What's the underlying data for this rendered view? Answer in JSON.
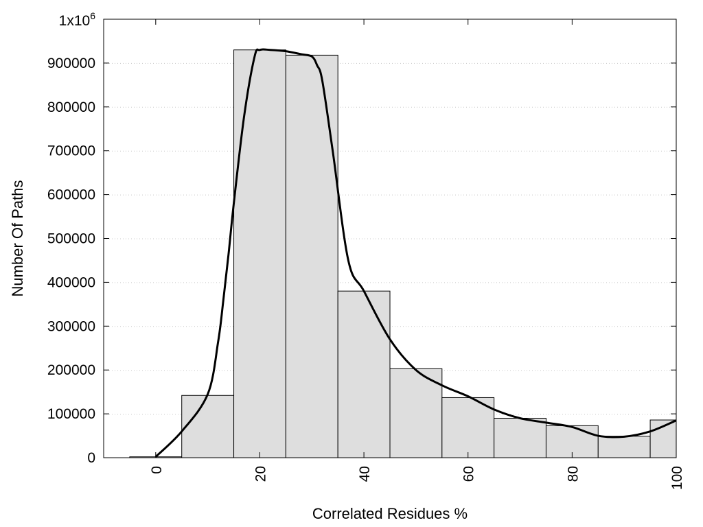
{
  "chart_data": {
    "type": "bar",
    "title": "",
    "xlabel": "Correlated Residues %",
    "ylabel": "Number Of Paths",
    "xlim": [
      -10,
      100
    ],
    "ylim": [
      0,
      1000000
    ],
    "x_ticks": [
      0,
      20,
      40,
      60,
      80,
      100
    ],
    "y_ticks": [
      0,
      100000,
      200000,
      300000,
      400000,
      500000,
      600000,
      700000,
      800000,
      900000
    ],
    "y_tick_labels": [
      "0",
      "100000",
      "200000",
      "300000",
      "400000",
      "500000",
      "600000",
      "700000",
      "800000",
      "900000"
    ],
    "y_top_label": {
      "mantissa": "1x10",
      "exponent": "6"
    },
    "grid": {
      "y": true,
      "x": false,
      "style": "dotted"
    },
    "bar_color": "#dedede",
    "bar_edge_color": "#000000",
    "bar_width": 10,
    "series": [
      {
        "kind": "histogram",
        "x": [
          0,
          10,
          20,
          30,
          40,
          50,
          60,
          70,
          80,
          90,
          100
        ],
        "values": [
          2000,
          142000,
          930000,
          918000,
          380000,
          203000,
          137000,
          90000,
          73000,
          49000,
          86000
        ]
      },
      {
        "kind": "smooth-line",
        "color": "#000000",
        "x": [
          0,
          5,
          10,
          12,
          13,
          14,
          15,
          17,
          19,
          20,
          22,
          25,
          28,
          30,
          31,
          32,
          34,
          37,
          40,
          45,
          50,
          55,
          60,
          65,
          70,
          75,
          80,
          85,
          90,
          95,
          100
        ],
        "values": [
          2000,
          60000,
          145000,
          265000,
          360000,
          465000,
          580000,
          780000,
          915000,
          930000,
          930000,
          927000,
          920000,
          915000,
          895000,
          860000,
          700000,
          450000,
          380000,
          270000,
          200000,
          165000,
          140000,
          110000,
          90000,
          80000,
          70000,
          50000,
          48000,
          60000,
          85000
        ]
      }
    ]
  }
}
